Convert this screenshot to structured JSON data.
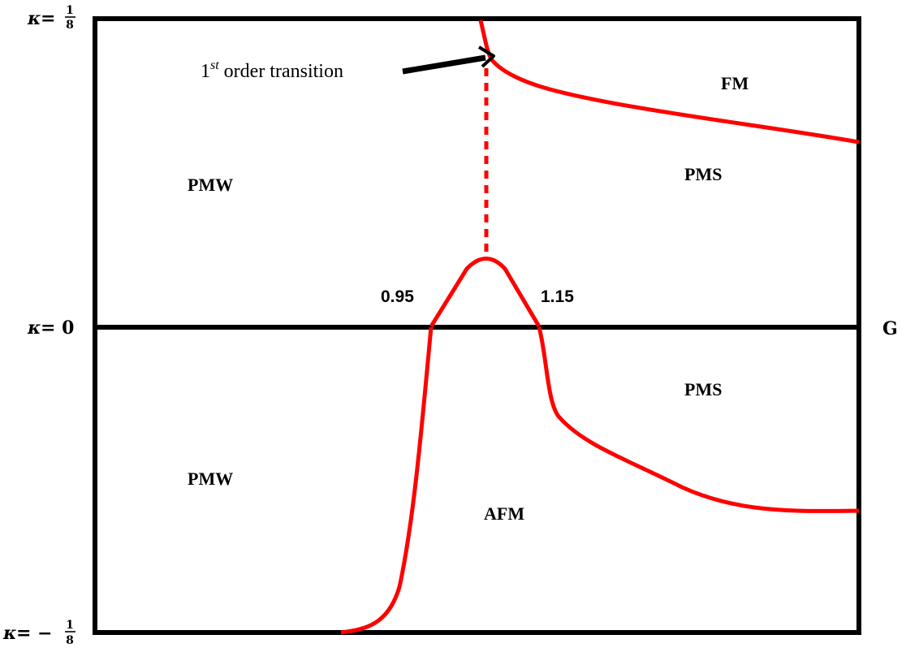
{
  "axes": {
    "kappa_symbol": "κ",
    "equals": " = ",
    "minus": "−",
    "top_numerator": "1",
    "top_denominator": "8",
    "middle_value": "0",
    "bottom_numerator": "1",
    "bottom_denominator": "8",
    "x_axis_label": "G"
  },
  "regions": {
    "pmw_top": "PMW",
    "pms_top": "PMS",
    "fm": "FM",
    "pmw_bottom": "PMW",
    "pms_bottom": "PMS",
    "afm": "AFM"
  },
  "markers": {
    "left_value": "0.95",
    "right_value": "1.15"
  },
  "annotation": {
    "base": "1",
    "superscript": "st",
    "text": " order transition"
  },
  "colors": {
    "frame": "#000000",
    "boundary": "#ff0000"
  }
}
